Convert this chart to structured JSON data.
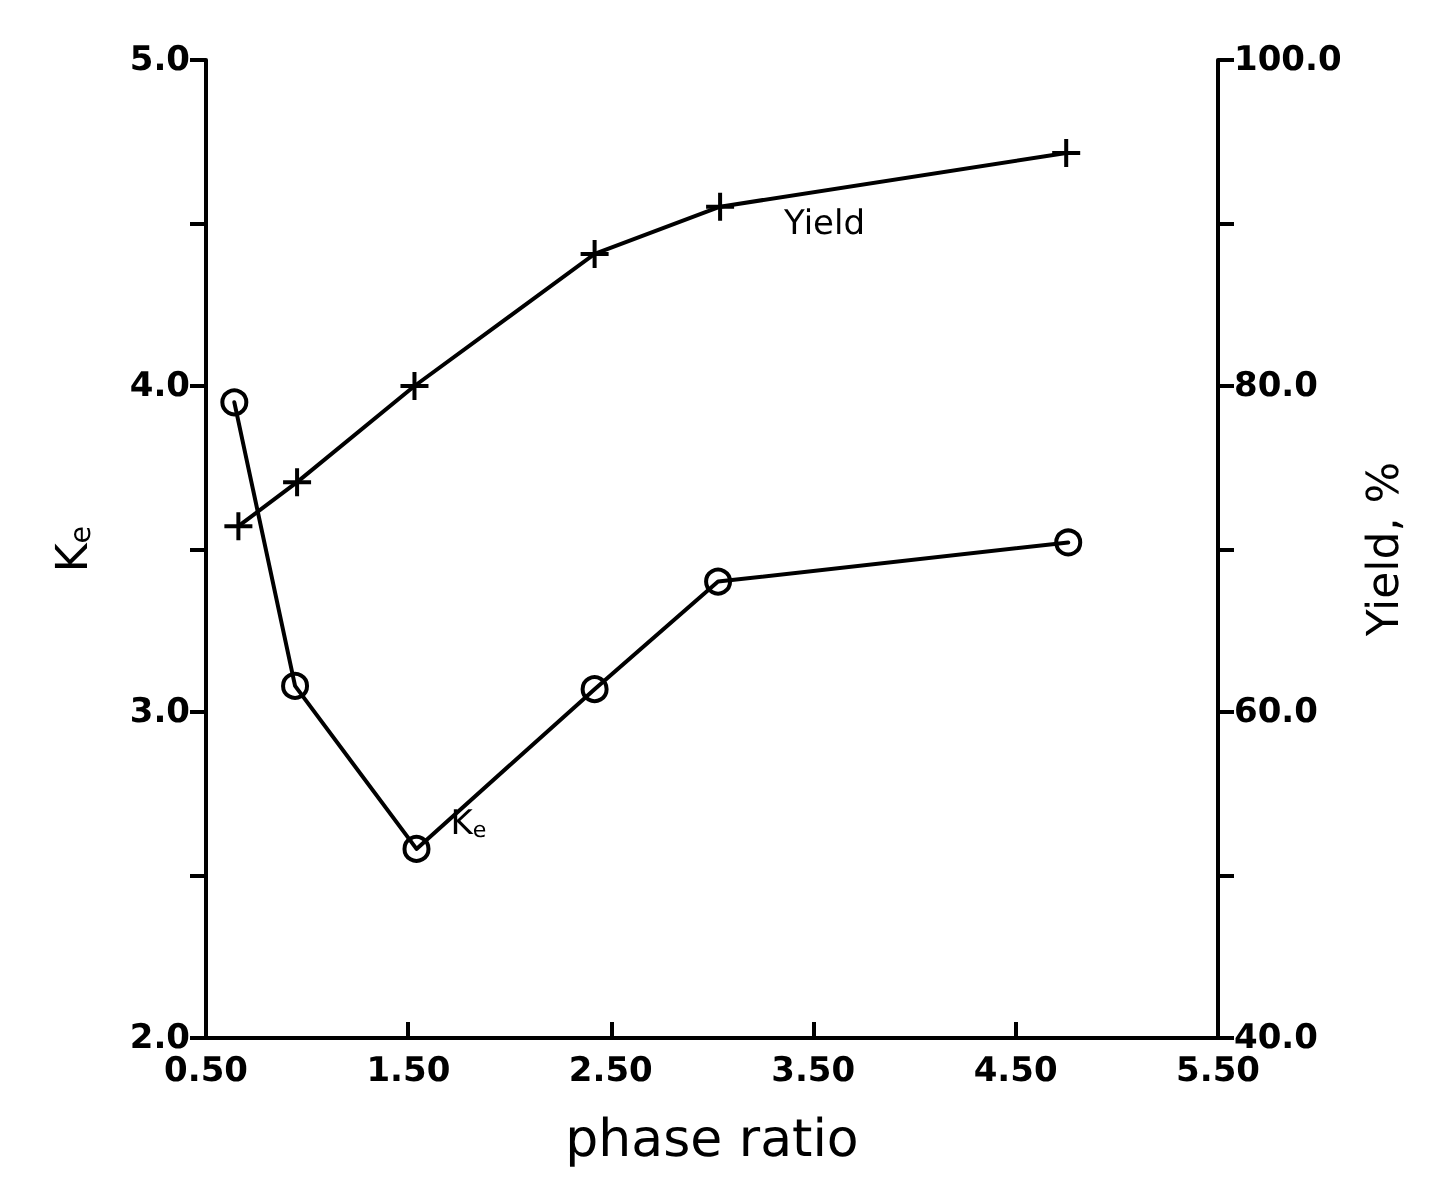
{
  "chart_data": {
    "type": "line",
    "xlabel": "phase ratio",
    "ylabel": "K$_{e}$",
    "y2label": "Yield, %",
    "xlim": [
      0.5,
      5.5
    ],
    "xticks": [
      {
        "value": 0.5,
        "label": "0.50"
      },
      {
        "value": 1.5,
        "label": "1.50"
      },
      {
        "value": 2.5,
        "label": "2.50"
      },
      {
        "value": 3.5,
        "label": "3.50"
      },
      {
        "value": 4.5,
        "label": "4.50"
      },
      {
        "value": 5.5,
        "label": "5.50"
      }
    ],
    "ylim": [
      2.0,
      5.0
    ],
    "yticks": [
      {
        "value": 2.0,
        "label": "2.0"
      },
      {
        "value": 2.5,
        "label": null
      },
      {
        "value": 3.0,
        "label": "3.0"
      },
      {
        "value": 3.5,
        "label": null
      },
      {
        "value": 4.0,
        "label": "4.0"
      },
      {
        "value": 4.5,
        "label": null
      },
      {
        "value": 5.0,
        "label": "5.0"
      }
    ],
    "y2lim": [
      40,
      100
    ],
    "y2ticks": [
      {
        "value": 40,
        "label": "40.0"
      },
      {
        "value": 50,
        "label": null
      },
      {
        "value": 60,
        "label": "60.0"
      },
      {
        "value": 70,
        "label": null
      },
      {
        "value": 80,
        "label": "80.0"
      },
      {
        "value": 90,
        "label": null
      },
      {
        "value": 100,
        "label": "100.0"
      }
    ],
    "grid": false,
    "legend": false,
    "line_style": "solid",
    "series": [
      {
        "name": "K$_{e}$",
        "color": "#000000",
        "marker": "circle",
        "x": [
          0.64,
          0.94,
          1.54,
          2.42,
          3.03,
          4.76
        ],
        "values": [
          3.95,
          3.08,
          2.58,
          3.07,
          3.4,
          3.52
        ]
      },
      {
        "name": "Yield",
        "color": "#000000",
        "marker": "cross",
        "axis": "y2",
        "x": [
          0.66,
          0.95,
          1.53,
          2.42,
          3.04,
          4.75
        ],
        "values": [
          71.4,
          74.1,
          80.0,
          88.1,
          91.0,
          94.3
        ]
      }
    ]
  }
}
